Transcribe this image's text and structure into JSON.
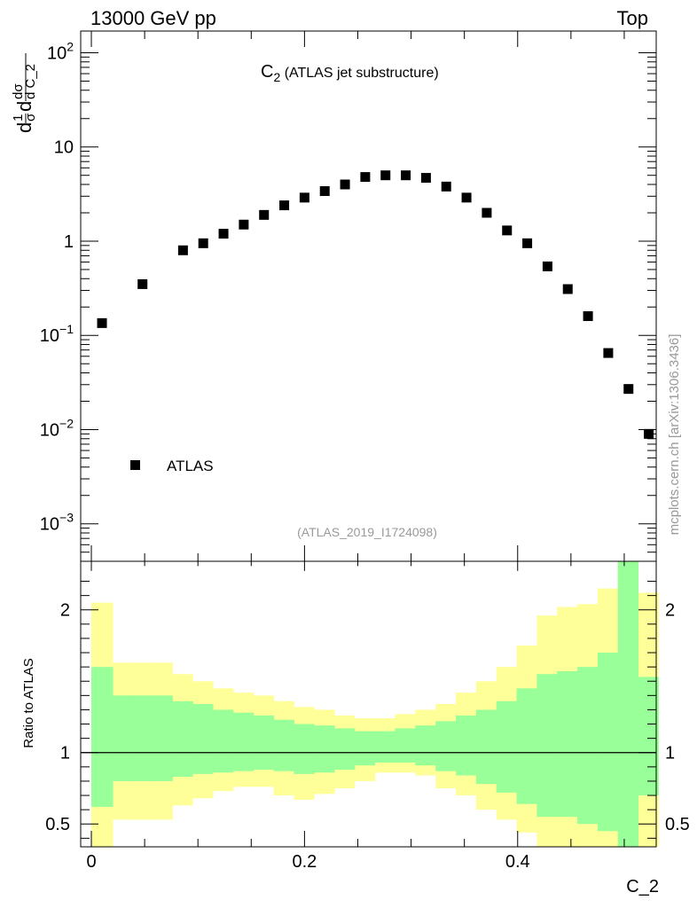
{
  "header": {
    "left": "13000 GeV pp",
    "right": "Top"
  },
  "side_label": "mcplots.cern.ch [arXiv:1306.3436]",
  "chart_data": [
    {
      "type": "scatter",
      "title": "C",
      "title_sub": "2",
      "title_rest": " (ATLAS jet substructure)",
      "analysis_tag": "(ATLAS_2019_I1724098)",
      "ylabel_parts": {
        "a": "d",
        "b": "1",
        "c": "σ",
        "d": "d",
        "e": "dσ",
        "f": "d C_2"
      },
      "yscale": "log",
      "ylim": [
        0.0004,
        170
      ],
      "xlim": [
        -0.01,
        0.53
      ],
      "y_ticks": [
        {
          "value": 0.001,
          "base": "10",
          "exp": "−3"
        },
        {
          "value": 0.01,
          "base": "10",
          "exp": "−2"
        },
        {
          "value": 0.1,
          "base": "10",
          "exp": "−1"
        },
        {
          "value": 1,
          "label": "1"
        },
        {
          "value": 10,
          "label": "10"
        },
        {
          "value": 100,
          "base": "10",
          "exp": "2"
        }
      ],
      "legend": {
        "label": "ATLAS",
        "position": "bottom-left"
      },
      "series": [
        {
          "name": "ATLAS",
          "x": [
            0.01,
            0.048,
            0.086,
            0.105,
            0.124,
            0.143,
            0.162,
            0.181,
            0.2,
            0.219,
            0.238,
            0.257,
            0.276,
            0.295,
            0.314,
            0.333,
            0.352,
            0.371,
            0.39,
            0.409,
            0.428,
            0.447,
            0.466,
            0.485,
            0.504,
            0.523
          ],
          "y": [
            0.135,
            0.35,
            0.8,
            0.95,
            1.2,
            1.5,
            1.9,
            2.4,
            2.9,
            3.4,
            4.0,
            4.8,
            5.0,
            5.0,
            4.7,
            3.8,
            2.9,
            2.0,
            1.3,
            0.95,
            0.54,
            0.31,
            0.16,
            0.065,
            0.027,
            0.009
          ]
        }
      ]
    },
    {
      "type": "area",
      "ylabel": "Ratio to ATLAS",
      "xlabel": "C_2",
      "ylim": [
        0.34,
        2.34
      ],
      "xlim": [
        -0.01,
        0.53
      ],
      "x_ticks": [
        {
          "value": 0,
          "label": "0"
        },
        {
          "value": 0.2,
          "label": "0.2"
        },
        {
          "value": 0.4,
          "label": "0.4"
        }
      ],
      "y_ticks": [
        {
          "value": 0.5,
          "label": "0.5"
        },
        {
          "value": 1,
          "label": "1"
        },
        {
          "value": 2,
          "label": "2"
        }
      ],
      "reference_line": 1,
      "bin_edges": [
        0,
        0.02,
        0.038,
        0.057,
        0.076,
        0.095,
        0.114,
        0.133,
        0.152,
        0.171,
        0.19,
        0.209,
        0.228,
        0.247,
        0.266,
        0.285,
        0.304,
        0.323,
        0.342,
        0.361,
        0.38,
        0.399,
        0.418,
        0.437,
        0.456,
        0.475,
        0.494,
        0.513,
        0.532
      ],
      "bands": [
        {
          "name": "total uncertainty",
          "color": "#ffff99",
          "upper": [
            2.05,
            1.63,
            1.63,
            1.63,
            1.55,
            1.5,
            1.45,
            1.42,
            1.4,
            1.36,
            1.32,
            1.3,
            1.26,
            1.24,
            1.24,
            1.27,
            1.3,
            1.34,
            1.42,
            1.5,
            1.6,
            1.75,
            1.96,
            2.02,
            2.04,
            2.15,
            2.4,
            2.12
          ],
          "lower": [
            0.34,
            0.53,
            0.53,
            0.53,
            0.63,
            0.68,
            0.73,
            0.76,
            0.76,
            0.7,
            0.67,
            0.71,
            0.75,
            0.8,
            0.86,
            0.86,
            0.84,
            0.75,
            0.7,
            0.6,
            0.53,
            0.44,
            0.34,
            0.34,
            0.34,
            0.34,
            0.34,
            0.34
          ]
        },
        {
          "name": "statistical uncertainty",
          "color": "#99ff99",
          "upper": [
            1.6,
            1.4,
            1.4,
            1.4,
            1.36,
            1.34,
            1.3,
            1.28,
            1.26,
            1.23,
            1.2,
            1.19,
            1.17,
            1.15,
            1.15,
            1.17,
            1.19,
            1.22,
            1.26,
            1.3,
            1.36,
            1.45,
            1.55,
            1.57,
            1.6,
            1.7,
            2.34,
            1.53
          ],
          "lower": [
            0.62,
            0.8,
            0.8,
            0.8,
            0.83,
            0.85,
            0.86,
            0.87,
            0.88,
            0.87,
            0.85,
            0.86,
            0.88,
            0.91,
            0.93,
            0.93,
            0.91,
            0.87,
            0.84,
            0.78,
            0.72,
            0.64,
            0.55,
            0.55,
            0.5,
            0.45,
            0.34,
            0.7
          ]
        }
      ]
    }
  ]
}
